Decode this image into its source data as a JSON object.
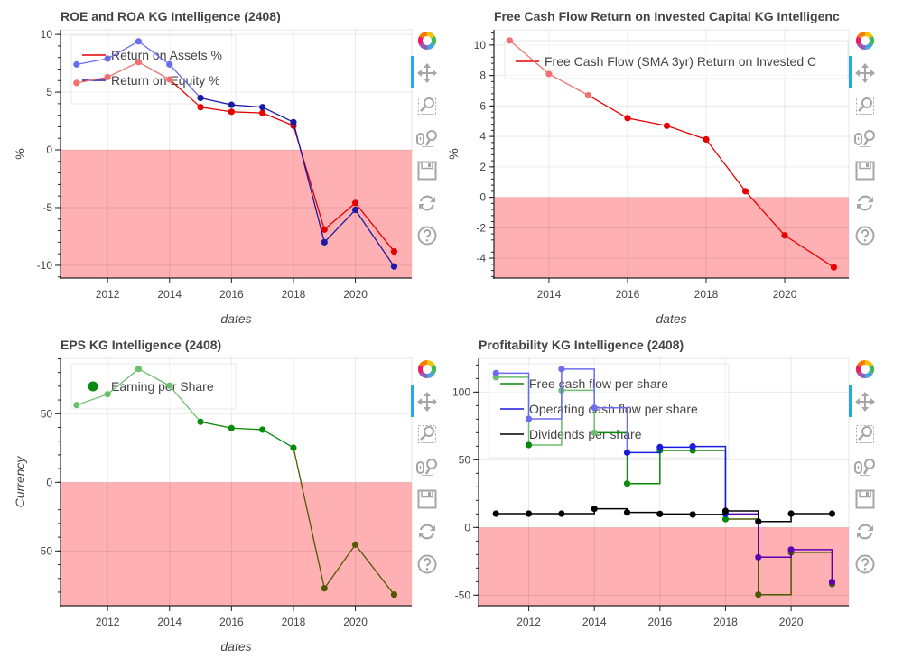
{
  "toolbar": {
    "tools": [
      "bokeh-logo-icon",
      "pan-icon",
      "box-zoom-icon",
      "wheel-zoom-icon",
      "save-icon",
      "reset-icon",
      "help-icon"
    ]
  },
  "chart_data": [
    {
      "id": "roe-roa",
      "type": "line",
      "title": "ROE and ROA KG Intelligence (2408)",
      "xlabel": "dates",
      "ylabel": "%",
      "xlim": [
        2010.48,
        2021.82
      ],
      "ylim": [
        -11.1,
        10.4
      ],
      "xticks": [
        2012,
        2014,
        2016,
        2018,
        2020
      ],
      "xtick_labels": [
        "2012",
        "2014",
        "2016",
        "2018",
        "2020"
      ],
      "yticks": [
        10,
        5,
        0,
        -5,
        -10
      ],
      "ytick_labels": [
        "10",
        "5",
        "0",
        "-5",
        "-10"
      ],
      "grid": true,
      "negative_band": true,
      "legend_position": "top-left",
      "x": [
        2011,
        2012,
        2013,
        2014,
        2015,
        2016,
        2017,
        2018,
        2019,
        2020,
        2021.25
      ],
      "series": [
        {
          "name": "Return on Assets %",
          "color": "#e60000",
          "light_color": "#f07070",
          "values": [
            5.8,
            6.3,
            7.6,
            6.1,
            3.7,
            3.3,
            3.2,
            2.1,
            -6.9,
            -4.6,
            -8.8
          ]
        },
        {
          "name": "Return on Equity %",
          "color": "#1a1aa6",
          "light_color": "#6c6cf0",
          "values": [
            7.4,
            7.9,
            9.4,
            7.4,
            4.5,
            3.9,
            3.7,
            2.4,
            -8.0,
            -5.2,
            -10.1
          ]
        }
      ]
    },
    {
      "id": "fcf-roic",
      "type": "line",
      "title": "Free Cash Flow Return on Invested Capital KG Intelligenc",
      "xlabel": "dates",
      "ylabel": "%",
      "xlim": [
        2012.6,
        2021.63
      ],
      "ylim": [
        -5.3,
        11.0
      ],
      "xticks": [
        2014,
        2016,
        2018,
        2020
      ],
      "xtick_labels": [
        "2014",
        "2016",
        "2018",
        "2020"
      ],
      "yticks": [
        10,
        8,
        6,
        4,
        2,
        0,
        -2,
        -4
      ],
      "ytick_labels": [
        "10",
        "8",
        "6",
        "4",
        "2",
        "0",
        "-2",
        "-4"
      ],
      "grid": true,
      "negative_band": true,
      "legend_position": "top-left",
      "x": [
        2013,
        2014,
        2015,
        2016,
        2017,
        2018,
        2019,
        2020,
        2021.25
      ],
      "series": [
        {
          "name": "Free Cash Flow (SMA 3yr) Return on Invested C",
          "color": "#e60000",
          "light_color": "#f07070",
          "values": [
            10.3,
            8.1,
            6.7,
            5.2,
            4.7,
            3.8,
            0.4,
            -2.5,
            -4.6
          ]
        }
      ]
    },
    {
      "id": "eps",
      "type": "line",
      "title": "EPS KG Intelligence (2408)",
      "xlabel": "dates",
      "ylabel": "Currency",
      "xlim": [
        2010.48,
        2021.82
      ],
      "ylim": [
        -89.9,
        90.3
      ],
      "xticks": [
        2012,
        2014,
        2016,
        2018,
        2020
      ],
      "xtick_labels": [
        "2012",
        "2014",
        "2016",
        "2018",
        "2020"
      ],
      "yticks": [
        50,
        0,
        -50
      ],
      "ytick_labels": [
        "50",
        "0",
        "-50"
      ],
      "grid": true,
      "negative_band": true,
      "legend_position": "top-left",
      "x": [
        2011,
        2012,
        2013,
        2014,
        2015,
        2016,
        2017,
        2018,
        2019,
        2020,
        2021.25
      ],
      "series": [
        {
          "name": "Earning per Share",
          "color": "#0a8a0a",
          "light_color": "#6cbf6c",
          "dark_color": "#4d5a00",
          "values": [
            56.3,
            64.2,
            82.6,
            70.4,
            44.1,
            39.5,
            38.4,
            25.2,
            -77.2,
            -45.4,
            -81.8
          ]
        }
      ]
    },
    {
      "id": "profitability",
      "type": "line",
      "title": "Profitability KG Intelligence (2408)",
      "xlabel": "",
      "ylabel": "",
      "xlim": [
        2010.47,
        2021.76
      ],
      "ylim": [
        -57.8,
        124.9
      ],
      "xticks": [
        2012,
        2014,
        2016,
        2018,
        2020
      ],
      "xtick_labels": [
        "2012",
        "2014",
        "2016",
        "2018",
        "2020"
      ],
      "yticks": [
        100,
        50,
        0,
        -50
      ],
      "ytick_labels": [
        "100",
        "50",
        "0",
        "-50"
      ],
      "grid": true,
      "negative_band": true,
      "step": "after",
      "legend_position": "top-left",
      "x": [
        2011,
        2012,
        2013,
        2014,
        2015,
        2016,
        2017,
        2018,
        2019,
        2020,
        2021.25
      ],
      "series": [
        {
          "name": "Free cash flow per share",
          "color": "#0a8a0a",
          "light_color": "#6cbf6c",
          "dark_color": "#4d5a00",
          "values": [
            111,
            60.9,
            101.3,
            70,
            32.4,
            56.9,
            56.9,
            6.2,
            -49.6,
            -18.4,
            -41.8
          ]
        },
        {
          "name": "Operating cash flow per share",
          "color": "#1a1ae0",
          "light_color": "#6c6cf0",
          "dark_color": "#5a00b4",
          "values": [
            114,
            80.2,
            117,
            88.4,
            55.3,
            59.3,
            59.8,
            10,
            -22,
            -16.4,
            -40.2
          ]
        },
        {
          "name": "Dividends per share",
          "color": "#000000",
          "light_color": "#000000",
          "dark_color": "#000000",
          "values": [
            10.2,
            10.2,
            10.2,
            13.8,
            11.1,
            10,
            9.6,
            12.2,
            4.4,
            10.2,
            10.2
          ]
        }
      ]
    }
  ]
}
